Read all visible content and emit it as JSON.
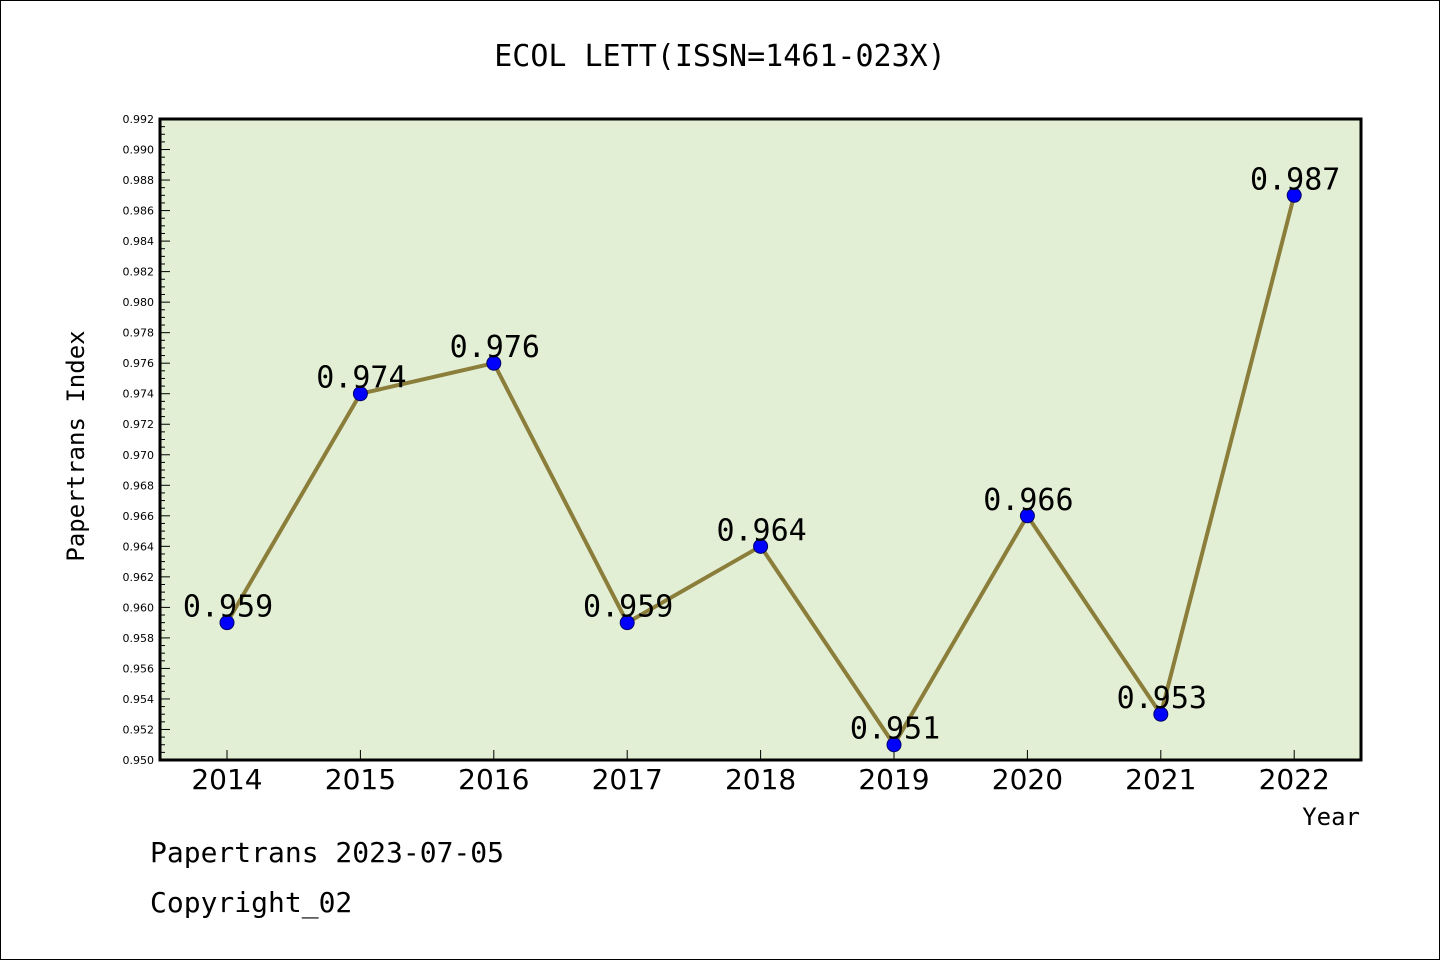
{
  "chart_data": {
    "type": "line",
    "title": "ECOL LETT(ISSN=1461-023X)",
    "xlabel": "Year",
    "ylabel": "Papertrans Index",
    "categories": [
      "2014",
      "2015",
      "2016",
      "2017",
      "2018",
      "2019",
      "2020",
      "2021",
      "2022"
    ],
    "series": [
      {
        "values": [
          0.959,
          0.974,
          0.976,
          0.959,
          0.964,
          0.951,
          0.966,
          0.953,
          0.987
        ]
      }
    ],
    "data_labels": [
      "0.959",
      "0.974",
      "0.976",
      "0.959",
      "0.964",
      "0.951",
      "0.966",
      "0.953",
      "0.987"
    ],
    "ylim": [
      0.95,
      0.992
    ],
    "y_ticks": [
      "0.950",
      "0.952",
      "0.954",
      "0.956",
      "0.958",
      "0.960",
      "0.962",
      "0.964",
      "0.966",
      "0.968",
      "0.970",
      "0.972",
      "0.974",
      "0.976",
      "0.978",
      "0.980",
      "0.982",
      "0.984",
      "0.986",
      "0.988",
      "0.990",
      "0.992"
    ],
    "grid": false,
    "legend": "none"
  },
  "footer": {
    "line1": "Papertrans 2023-07-05",
    "line2": "Copyright_02"
  },
  "colors": {
    "plot_background": "#e2efd5",
    "line": "#8b7d3a",
    "marker": "#0000ff",
    "axis": "#000000"
  }
}
